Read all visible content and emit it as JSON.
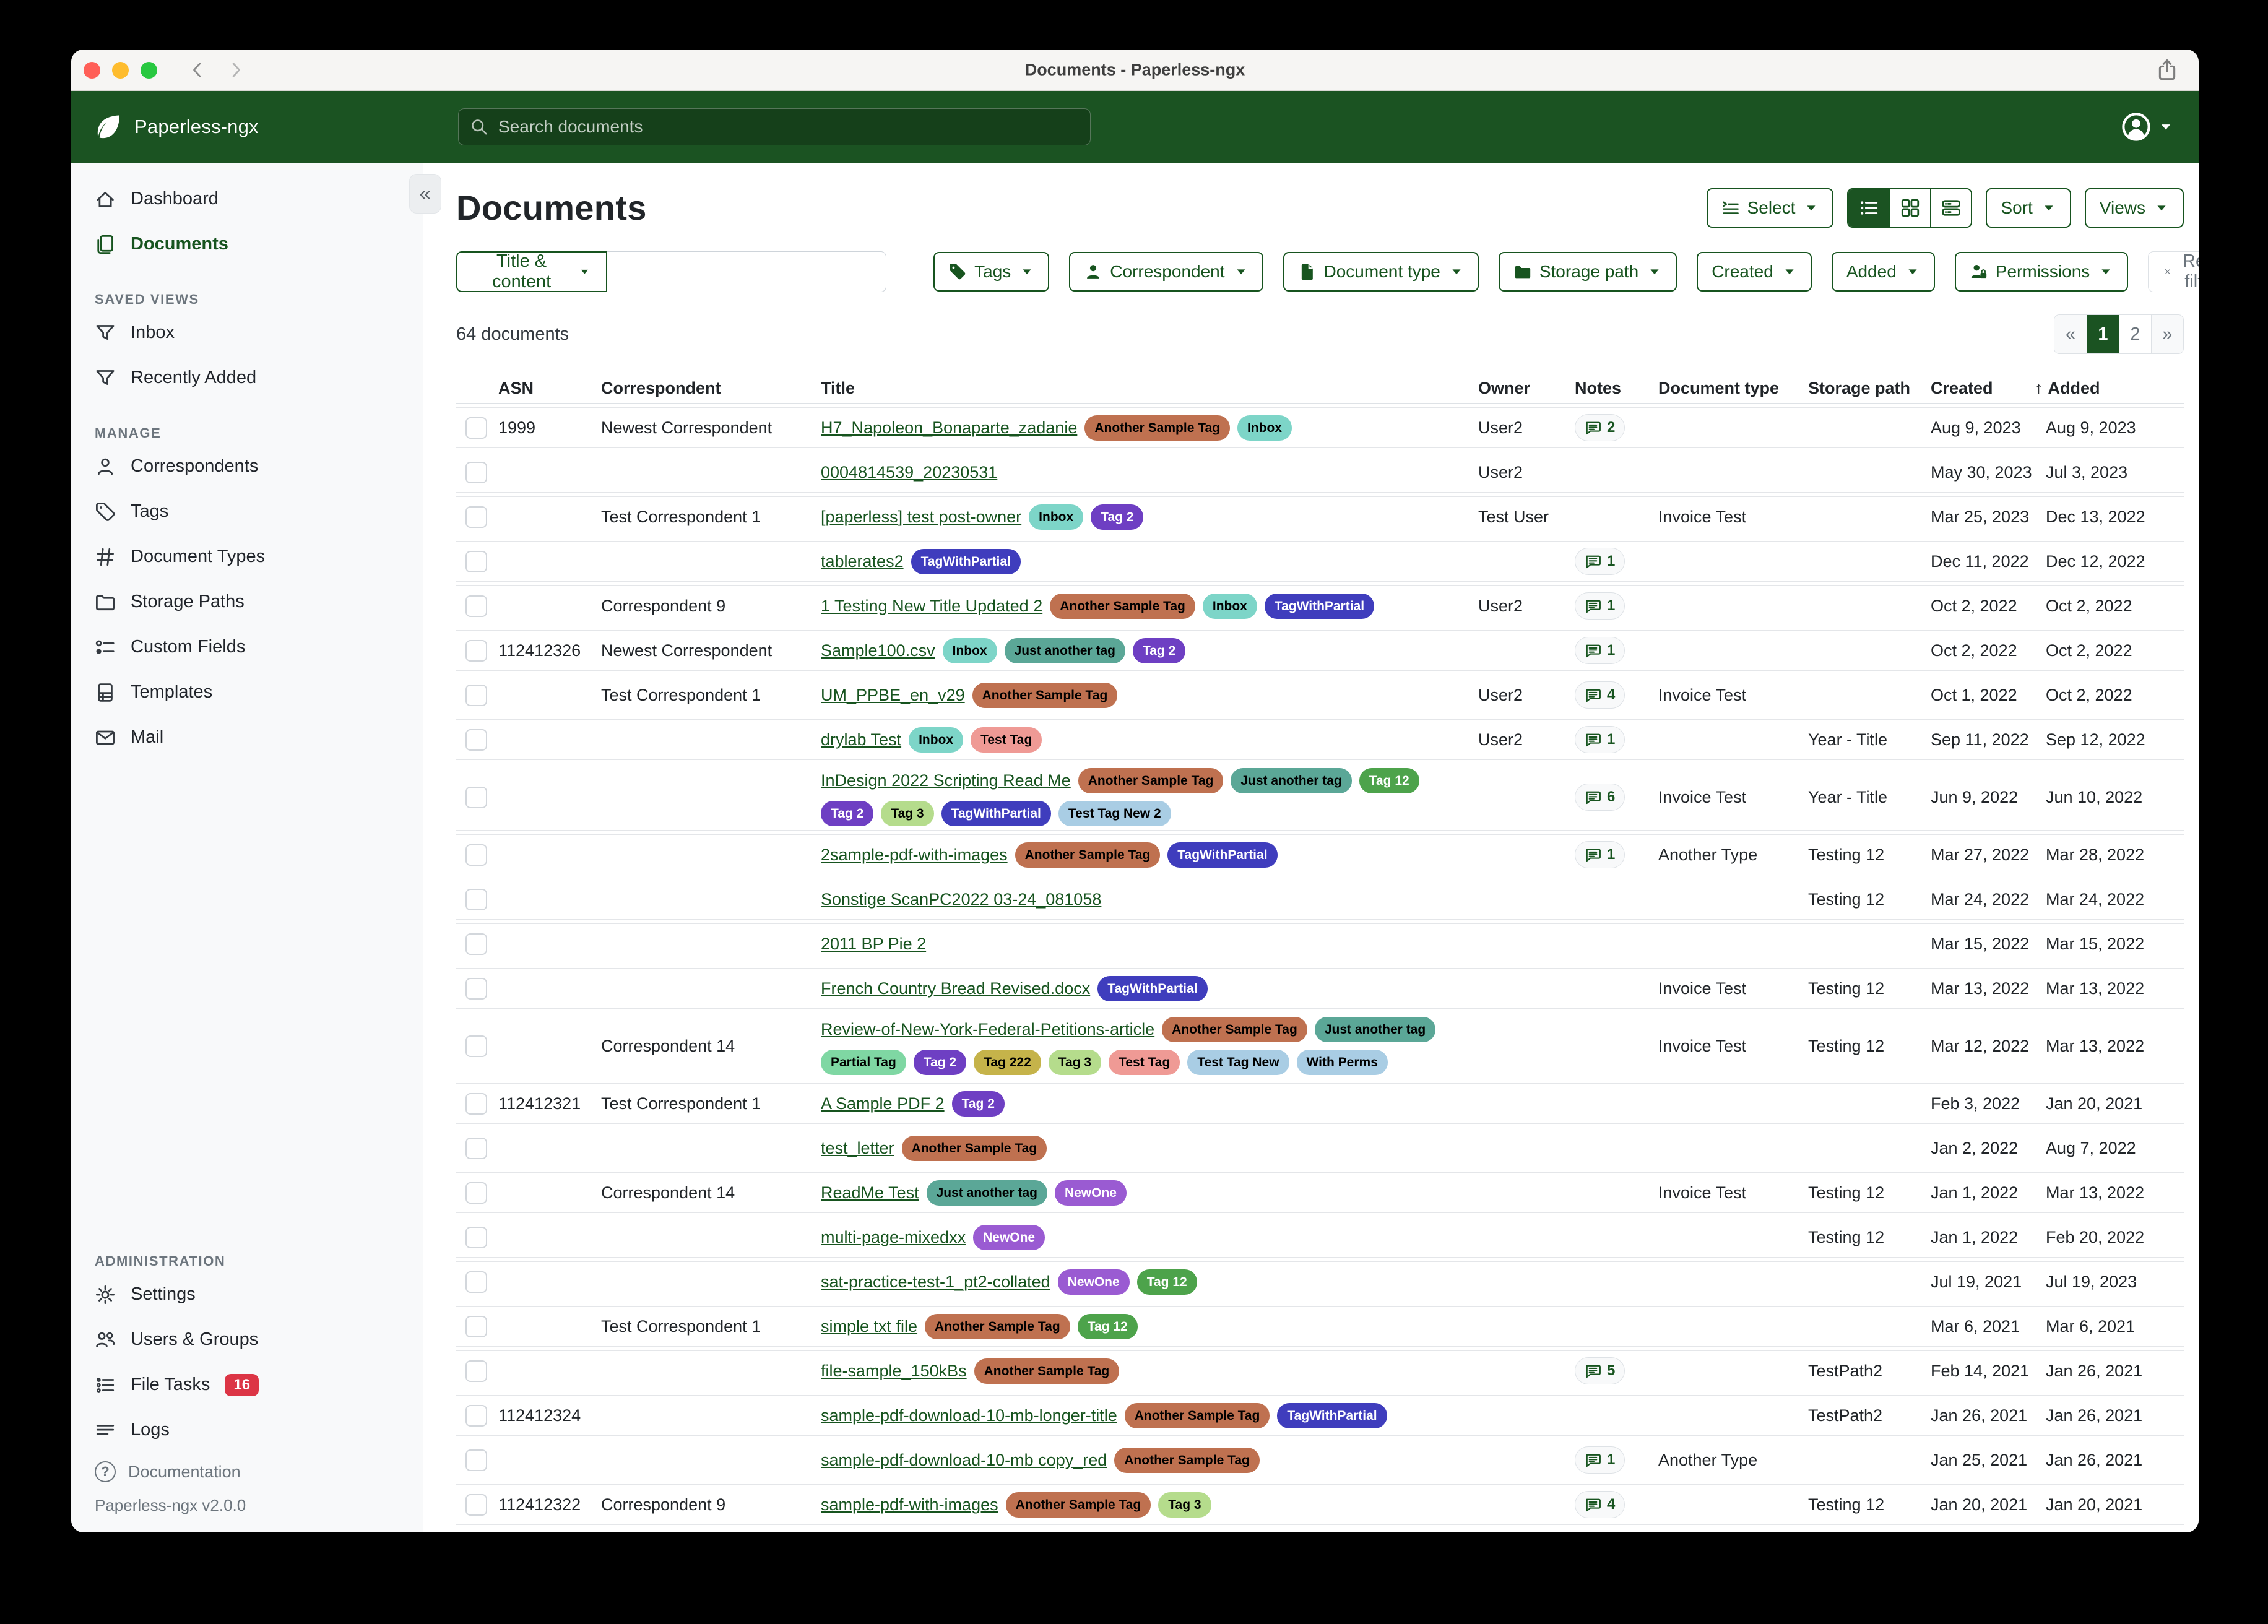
{
  "window": {
    "title": "Documents - Paperless-ngx"
  },
  "app_header": {
    "brand": "Paperless-ngx",
    "search_placeholder": "Search documents",
    "colors": {
      "header_green": "#1b5322",
      "accent_green": "#17541f"
    }
  },
  "sidebar": {
    "sections": [
      {
        "label": null,
        "items": [
          {
            "label": "Dashboard",
            "icon": "house"
          },
          {
            "label": "Documents",
            "icon": "files",
            "active": true
          }
        ]
      },
      {
        "label": "SAVED VIEWS",
        "items": [
          {
            "label": "Inbox",
            "icon": "funnel"
          },
          {
            "label": "Recently Added",
            "icon": "funnel"
          }
        ]
      },
      {
        "label": "MANAGE",
        "items": [
          {
            "label": "Correspondents",
            "icon": "person"
          },
          {
            "label": "Tags",
            "icon": "tag"
          },
          {
            "label": "Document Types",
            "icon": "hash"
          },
          {
            "label": "Storage Paths",
            "icon": "folder"
          },
          {
            "label": "Custom Fields",
            "icon": "custom-fields"
          },
          {
            "label": "Templates",
            "icon": "file-ruled"
          },
          {
            "label": "Mail",
            "icon": "envelope"
          }
        ]
      },
      {
        "label": "ADMINISTRATION",
        "push_bottom": true,
        "items": [
          {
            "label": "Settings",
            "icon": "gear"
          },
          {
            "label": "Users & Groups",
            "icon": "people"
          },
          {
            "label": "File Tasks",
            "icon": "list-task",
            "badge": "16"
          },
          {
            "label": "Logs",
            "icon": "text-left"
          }
        ]
      }
    ],
    "footer": {
      "documentation": "Documentation",
      "version": "Paperless-ngx v2.0.0"
    },
    "badge_color": "#dc3545"
  },
  "page": {
    "title": "Documents",
    "count_label": "64 documents"
  },
  "toolbar": {
    "select_label": "Select",
    "view_modes": [
      {
        "name": "list",
        "icon": "list-ul",
        "active": true
      },
      {
        "name": "grid",
        "icon": "grid",
        "active": false
      },
      {
        "name": "cards",
        "icon": "cards",
        "active": false
      }
    ],
    "sort_label": "Sort",
    "views_label": "Views"
  },
  "filters": {
    "text_filter": {
      "dropdown_label": "Title & content",
      "input_value": "",
      "input_placeholder": ""
    },
    "buttons": [
      {
        "label": "Tags",
        "icon": "tag-fill"
      },
      {
        "label": "Correspondent",
        "icon": "person-fill"
      },
      {
        "label": "Document type",
        "icon": "file-fill"
      },
      {
        "label": "Storage path",
        "icon": "folder-fill"
      },
      {
        "label": "Created"
      },
      {
        "label": "Added"
      },
      {
        "label": "Permissions",
        "icon": "person-lock"
      }
    ],
    "reset_label": "Reset filters"
  },
  "pagination": [
    {
      "label": "«",
      "type": "nav"
    },
    {
      "label": "1",
      "type": "num",
      "active": true
    },
    {
      "label": "2",
      "type": "num",
      "active": false
    },
    {
      "label": "»",
      "type": "nav"
    }
  ],
  "table": {
    "headers": [
      "ASN",
      "Correspondent",
      "Title",
      "Owner",
      "Notes",
      "Document type",
      "Storage path",
      "Created",
      "Added"
    ],
    "sorted_by": "Added",
    "sort_direction": "asc",
    "rows": [
      {
        "asn": "1999",
        "correspondent": "Newest Correspondent",
        "title": "H7_Napoleon_Bonaparte_zadanie",
        "tags": [
          "Another Sample Tag",
          "Inbox"
        ],
        "owner": "User2",
        "notes": 2,
        "doctype": "",
        "storage": "",
        "created": "Aug 9, 2023",
        "added": "Aug 9, 2023"
      },
      {
        "asn": "",
        "correspondent": "",
        "title": "0004814539_20230531",
        "tags": [],
        "owner": "User2",
        "notes": null,
        "doctype": "",
        "storage": "",
        "created": "May 30, 2023",
        "added": "Jul 3, 2023"
      },
      {
        "asn": "",
        "correspondent": "Test Correspondent 1",
        "title": "[paperless] test post-owner",
        "tags": [
          "Inbox",
          "Tag 2"
        ],
        "owner": "Test User",
        "notes": null,
        "doctype": "Invoice Test",
        "storage": "",
        "created": "Mar 25, 2023",
        "added": "Dec 13, 2022"
      },
      {
        "asn": "",
        "correspondent": "",
        "title": "tablerates2",
        "tags": [
          "TagWithPartial"
        ],
        "owner": "",
        "notes": 1,
        "doctype": "",
        "storage": "",
        "created": "Dec 11, 2022",
        "added": "Dec 12, 2022"
      },
      {
        "asn": "",
        "correspondent": "Correspondent 9",
        "title": "1 Testing New Title Updated 2",
        "tags": [
          "Another Sample Tag",
          "Inbox",
          "TagWithPartial"
        ],
        "owner": "User2",
        "notes": 1,
        "doctype": "",
        "storage": "",
        "created": "Oct 2, 2022",
        "added": "Oct 2, 2022"
      },
      {
        "asn": "112412326",
        "correspondent": "Newest Correspondent",
        "title": "Sample100.csv",
        "tags": [
          "Inbox",
          "Just another tag",
          "Tag 2"
        ],
        "owner": "",
        "notes": 1,
        "doctype": "",
        "storage": "",
        "created": "Oct 2, 2022",
        "added": "Oct 2, 2022"
      },
      {
        "asn": "",
        "correspondent": "Test Correspondent 1",
        "title": "UM_PPBE_en_v29",
        "tags": [
          "Another Sample Tag"
        ],
        "owner": "User2",
        "notes": 4,
        "doctype": "Invoice Test",
        "storage": "",
        "created": "Oct 1, 2022",
        "added": "Oct 2, 2022"
      },
      {
        "asn": "",
        "correspondent": "",
        "title": "drylab Test",
        "tags": [
          "Inbox",
          "Test Tag"
        ],
        "owner": "User2",
        "notes": 1,
        "doctype": "",
        "storage": "Year - Title",
        "created": "Sep 11, 2022",
        "added": "Sep 12, 2022"
      },
      {
        "asn": "",
        "correspondent": "",
        "title": "InDesign 2022 Scripting Read Me",
        "tags": [
          "Another Sample Tag",
          "Just another tag",
          "Tag 12",
          "Tag 2",
          "Tag 3",
          "TagWithPartial",
          "Test Tag New 2"
        ],
        "owner": "",
        "notes": 6,
        "doctype": "Invoice Test",
        "storage": "Year - Title",
        "created": "Jun 9, 2022",
        "added": "Jun 10, 2022"
      },
      {
        "asn": "",
        "correspondent": "",
        "title": "2sample-pdf-with-images",
        "tags": [
          "Another Sample Tag",
          "TagWithPartial"
        ],
        "owner": "",
        "notes": 1,
        "doctype": "Another Type",
        "storage": "Testing 12",
        "created": "Mar 27, 2022",
        "added": "Mar 28, 2022"
      },
      {
        "asn": "",
        "correspondent": "",
        "title": "Sonstige ScanPC2022 03-24_081058",
        "tags": [],
        "owner": "",
        "notes": null,
        "doctype": "",
        "storage": "Testing 12",
        "created": "Mar 24, 2022",
        "added": "Mar 24, 2022"
      },
      {
        "asn": "",
        "correspondent": "",
        "title": "2011 BP Pie 2",
        "tags": [],
        "owner": "",
        "notes": null,
        "doctype": "",
        "storage": "",
        "created": "Mar 15, 2022",
        "added": "Mar 15, 2022"
      },
      {
        "asn": "",
        "correspondent": "",
        "title": "French Country Bread Revised.docx",
        "tags": [
          "TagWithPartial"
        ],
        "owner": "",
        "notes": null,
        "doctype": "Invoice Test",
        "storage": "Testing 12",
        "created": "Mar 13, 2022",
        "added": "Mar 13, 2022"
      },
      {
        "asn": "",
        "correspondent": "Correspondent 14",
        "title": "Review-of-New-York-Federal-Petitions-article",
        "tags": [
          "Another Sample Tag",
          "Just another tag",
          "Partial Tag",
          "Tag 2",
          "Tag 222",
          "Tag 3",
          "Test Tag",
          "Test Tag New",
          "With Perms"
        ],
        "owner": "",
        "notes": null,
        "doctype": "Invoice Test",
        "storage": "Testing 12",
        "created": "Mar 12, 2022",
        "added": "Mar 13, 2022"
      },
      {
        "asn": "112412321",
        "correspondent": "Test Correspondent 1",
        "title": "A Sample PDF 2",
        "tags": [
          "Tag 2"
        ],
        "owner": "",
        "notes": null,
        "doctype": "",
        "storage": "",
        "created": "Feb 3, 2022",
        "added": "Jan 20, 2021"
      },
      {
        "asn": "",
        "correspondent": "",
        "title": "test_letter",
        "tags": [
          "Another Sample Tag"
        ],
        "owner": "",
        "notes": null,
        "doctype": "",
        "storage": "",
        "created": "Jan 2, 2022",
        "added": "Aug 7, 2022"
      },
      {
        "asn": "",
        "correspondent": "Correspondent 14",
        "title": "ReadMe Test",
        "tags": [
          "Just another tag",
          "NewOne"
        ],
        "owner": "",
        "notes": null,
        "doctype": "Invoice Test",
        "storage": "Testing 12",
        "created": "Jan 1, 2022",
        "added": "Mar 13, 2022"
      },
      {
        "asn": "",
        "correspondent": "",
        "title": "multi-page-mixedxx",
        "tags": [
          "NewOne"
        ],
        "owner": "",
        "notes": null,
        "doctype": "",
        "storage": "Testing 12",
        "created": "Jan 1, 2022",
        "added": "Feb 20, 2022"
      },
      {
        "asn": "",
        "correspondent": "",
        "title": "sat-practice-test-1_pt2-collated",
        "tags": [
          "NewOne",
          "Tag 12"
        ],
        "owner": "",
        "notes": null,
        "doctype": "",
        "storage": "",
        "created": "Jul 19, 2021",
        "added": "Jul 19, 2023"
      },
      {
        "asn": "",
        "correspondent": "Test Correspondent 1",
        "title": "simple txt file",
        "tags": [
          "Another Sample Tag",
          "Tag 12"
        ],
        "owner": "",
        "notes": null,
        "doctype": "",
        "storage": "",
        "created": "Mar 6, 2021",
        "added": "Mar 6, 2021"
      },
      {
        "asn": "",
        "correspondent": "",
        "title": "file-sample_150kBs",
        "tags": [
          "Another Sample Tag"
        ],
        "owner": "",
        "notes": 5,
        "doctype": "",
        "storage": "TestPath2",
        "created": "Feb 14, 2021",
        "added": "Jan 26, 2021"
      },
      {
        "asn": "112412324",
        "correspondent": "",
        "title": "sample-pdf-download-10-mb-longer-title",
        "tags": [
          "Another Sample Tag",
          "TagWithPartial"
        ],
        "owner": "",
        "notes": null,
        "doctype": "",
        "storage": "TestPath2",
        "created": "Jan 26, 2021",
        "added": "Jan 26, 2021"
      },
      {
        "asn": "",
        "correspondent": "",
        "title": "sample-pdf-download-10-mb copy_red",
        "tags": [
          "Another Sample Tag"
        ],
        "owner": "",
        "notes": 1,
        "doctype": "Another Type",
        "storage": "",
        "created": "Jan 25, 2021",
        "added": "Jan 26, 2021"
      },
      {
        "asn": "112412322",
        "correspondent": "Correspondent 9",
        "title": "sample-pdf-with-images",
        "tags": [
          "Another Sample Tag",
          "Tag 3"
        ],
        "owner": "",
        "notes": 4,
        "doctype": "",
        "storage": "Testing 12",
        "created": "Jan 20, 2021",
        "added": "Jan 20, 2021"
      }
    ]
  },
  "tag_colors": {
    "Another Sample Tag": {
      "bg": "#bf7150",
      "fg": "#000000"
    },
    "Inbox": {
      "bg": "#7dd5c8",
      "fg": "#000000"
    },
    "Tag 2": {
      "bg": "#6e3fc3",
      "fg": "#ffffff"
    },
    "TagWithPartial": {
      "bg": "#3f3dbd",
      "fg": "#ffffff"
    },
    "Just another tag": {
      "bg": "#5ba797",
      "fg": "#000000"
    },
    "Tag 12": {
      "bg": "#4da34b",
      "fg": "#ffffff"
    },
    "Tag 3": {
      "bg": "#b5dc8c",
      "fg": "#000000"
    },
    "Test Tag New 2": {
      "bg": "#a9cde4",
      "fg": "#000000"
    },
    "Test Tag": {
      "bg": "#ef9a95",
      "fg": "#000000"
    },
    "Partial Tag": {
      "bg": "#7fd7a3",
      "fg": "#000000"
    },
    "Tag 222": {
      "bg": "#c5b34a",
      "fg": "#000000"
    },
    "Test Tag New": {
      "bg": "#a9cde4",
      "fg": "#000000"
    },
    "With Perms": {
      "bg": "#a9cde4",
      "fg": "#000000"
    },
    "NewOne": {
      "bg": "#9a5bd2",
      "fg": "#ffffff"
    }
  }
}
